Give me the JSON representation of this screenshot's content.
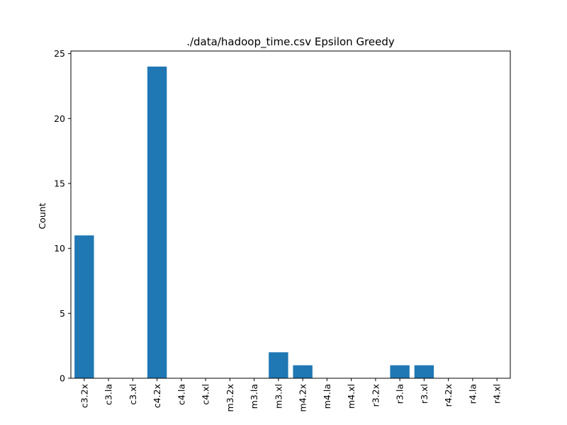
{
  "chart_data": {
    "type": "bar",
    "title": "./data/hadoop_time.csv Epsilon Greedy",
    "xlabel": "",
    "ylabel": "Count",
    "categories": [
      "c3.2x",
      "c3.la",
      "c3.xl",
      "c4.2x",
      "c4.la",
      "c4.xl",
      "m3.2x",
      "m3.la",
      "m3.xl",
      "m4.2x",
      "m4.la",
      "m4.xl",
      "r3.2x",
      "r3.la",
      "r3.xl",
      "r4.2x",
      "r4.la",
      "r4.xl"
    ],
    "values": [
      11,
      0,
      0,
      24,
      0,
      0,
      0,
      0,
      2,
      1,
      0,
      0,
      0,
      1,
      1,
      0,
      0,
      0
    ],
    "ylim": [
      0,
      25.2
    ],
    "yticks": [
      0,
      5,
      10,
      15,
      20,
      25
    ],
    "grid": false,
    "bar_color": "#1f77b4"
  }
}
